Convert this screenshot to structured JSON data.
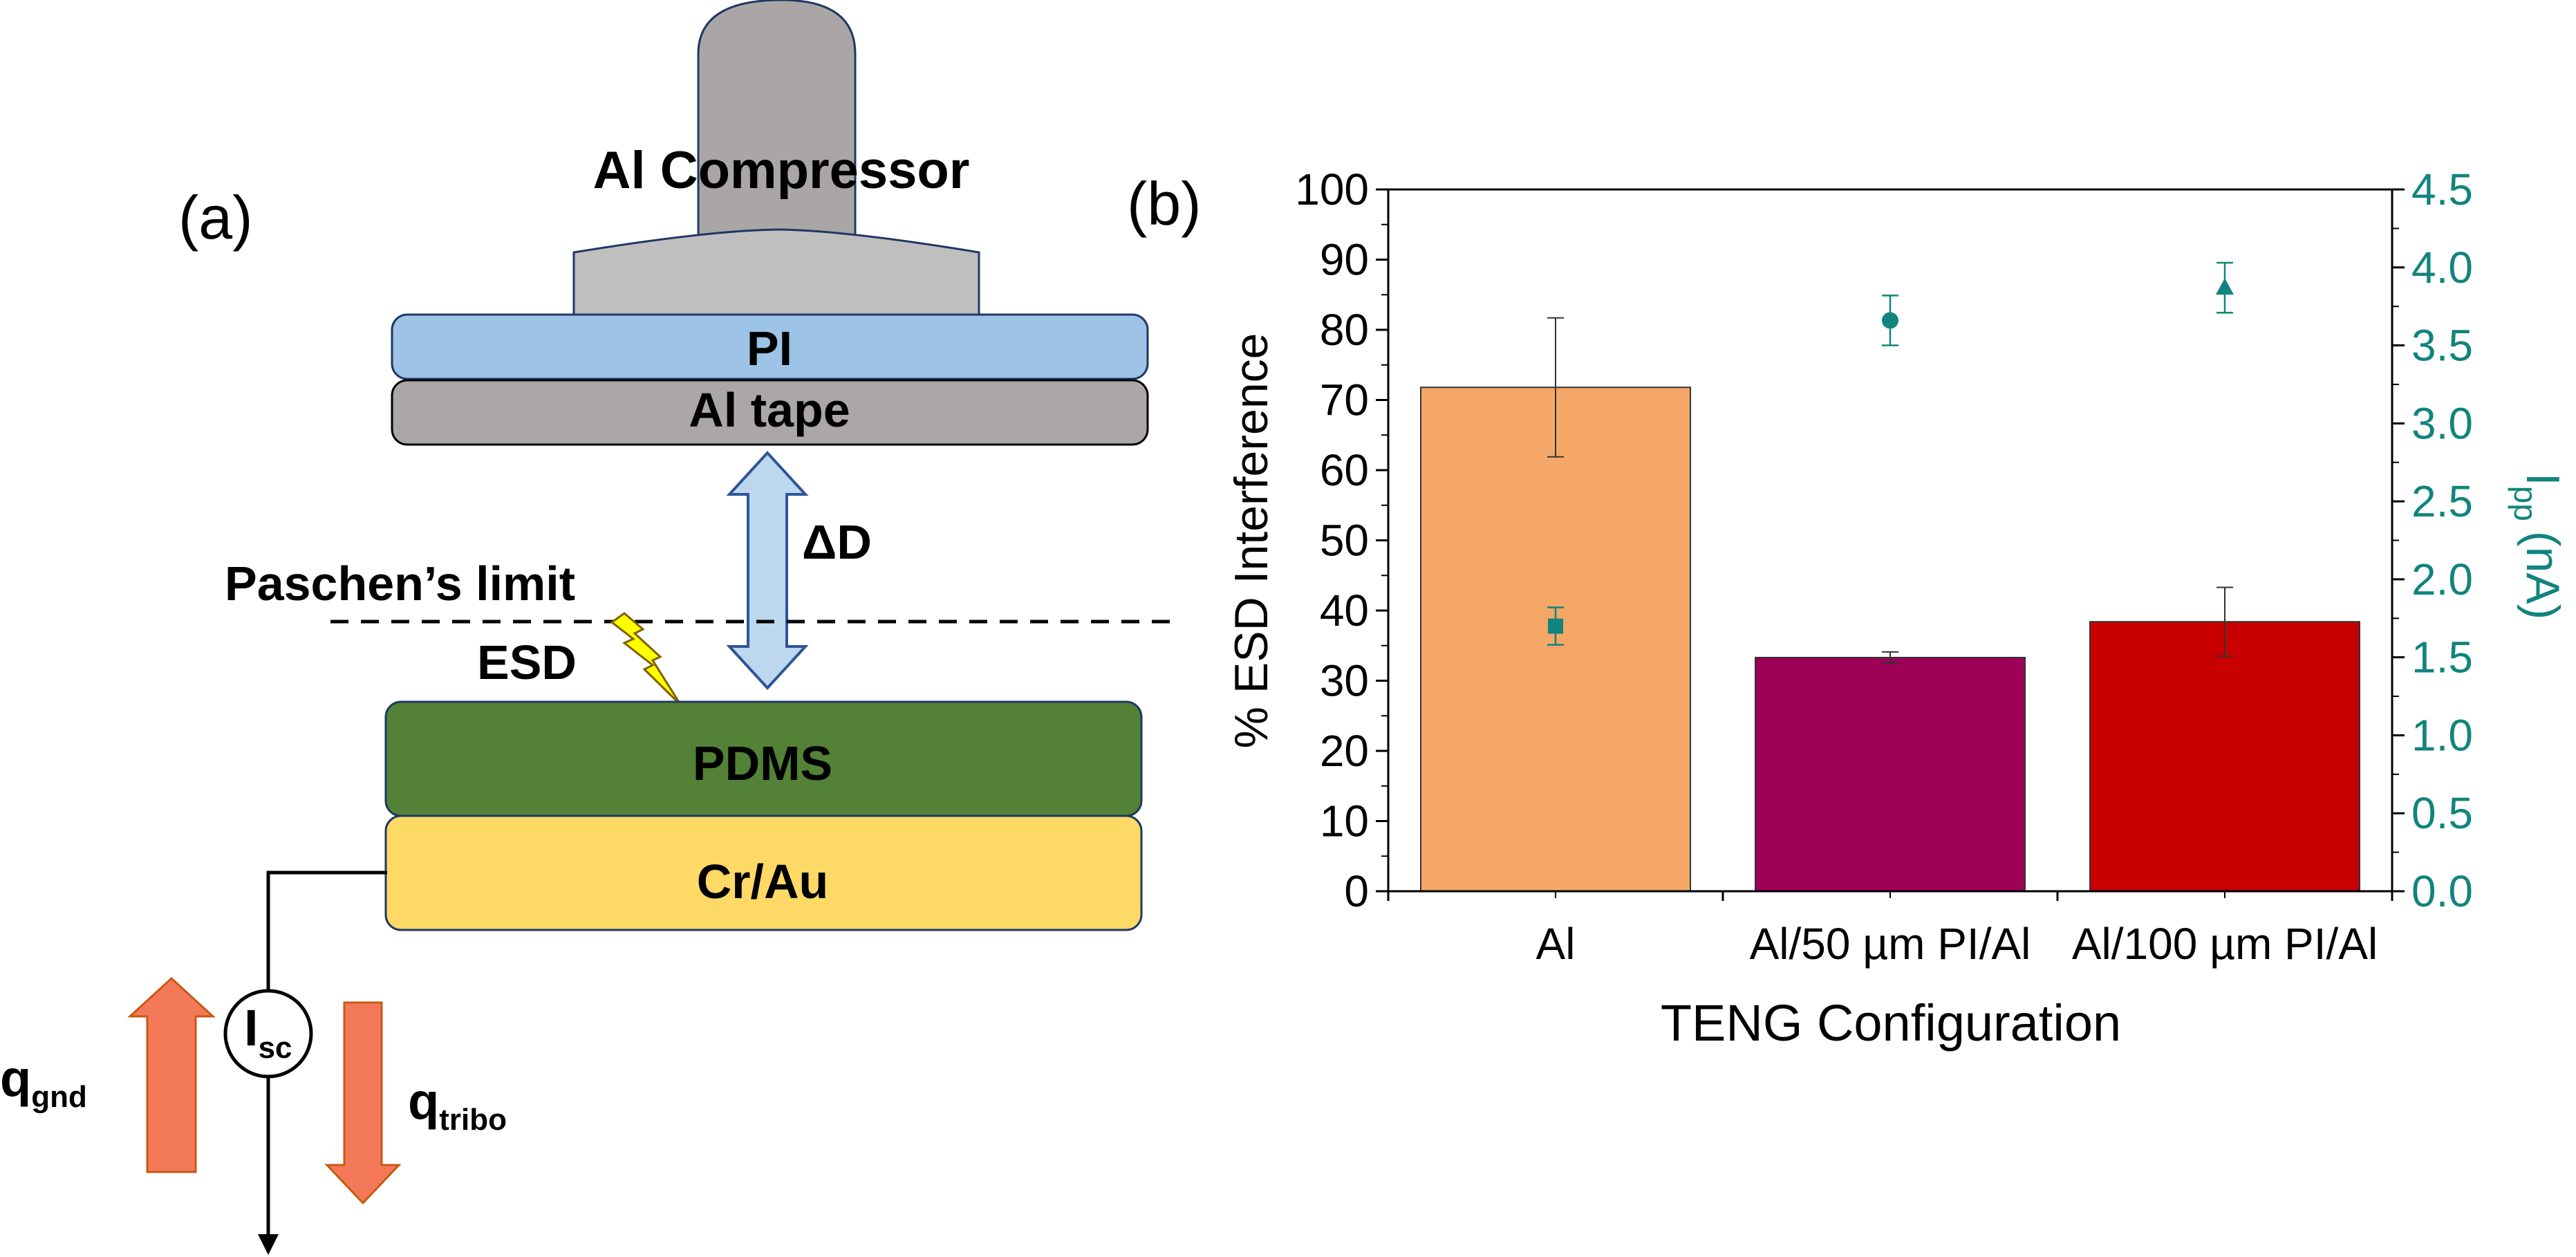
{
  "panel_a": {
    "label": "(a)",
    "compressor_label": "Al Compressor",
    "pi_label": "PI",
    "tape_label": "Al tape",
    "gap_label": "ΔD",
    "paschen_label": "Paschen’s limit",
    "esd_label": "ESD",
    "pdms_label": "PDMS",
    "electrode_label": "Cr/Au",
    "source_main": "I",
    "source_sub": "sc",
    "q_gnd_main": "q",
    "q_gnd_sub": "gnd",
    "q_tribo_main": "q",
    "q_tribo_sub": "tribo",
    "colors": {
      "compressor": "#aba6a6",
      "compressor_base": "#bfbfbf",
      "pi": "#9dc3e6",
      "tape": "#aba7a7",
      "gap_arrow": "#bdd7ee",
      "pdms": "#538135",
      "electrode": "#ffd966",
      "charge_arrow": "#f4795b",
      "spark": "#ffff00"
    }
  },
  "panel_b": {
    "label": "(b)",
    "chart_data": {
      "type": "bar",
      "categories": [
        "Al",
        "Al/50 µm PI/Al",
        "Al/100 µm PI/Al"
      ],
      "xlabel": "TENG Configuration",
      "ylabel": "% ESD Interference",
      "y2label_main": "I",
      "y2label_sub": "pp",
      "y2label_unit": "(nA)",
      "ylim": [
        0,
        100
      ],
      "yticks": [
        "0",
        "10",
        "20",
        "30",
        "40",
        "50",
        "60",
        "70",
        "80",
        "90",
        "100"
      ],
      "y2lim": [
        0,
        4.5
      ],
      "y2ticks": [
        "0.0",
        "0.5",
        "1.0",
        "1.5",
        "2.0",
        "2.5",
        "3.0",
        "3.5",
        "4.0",
        "4.5"
      ],
      "bars": {
        "values": [
          71.8,
          33.3,
          38.4
        ],
        "errors": [
          9.9,
          0.8,
          4.9
        ],
        "colors": [
          "#f4a767",
          "#9e0057",
          "#c90000"
        ]
      },
      "points": {
        "values": [
          1.7,
          3.66,
          3.87
        ],
        "errors": [
          0.12,
          0.16,
          0.16
        ],
        "markers": [
          "square",
          "circle",
          "triangle"
        ],
        "color": "#11847d"
      },
      "grid": false,
      "legend": "none"
    }
  }
}
